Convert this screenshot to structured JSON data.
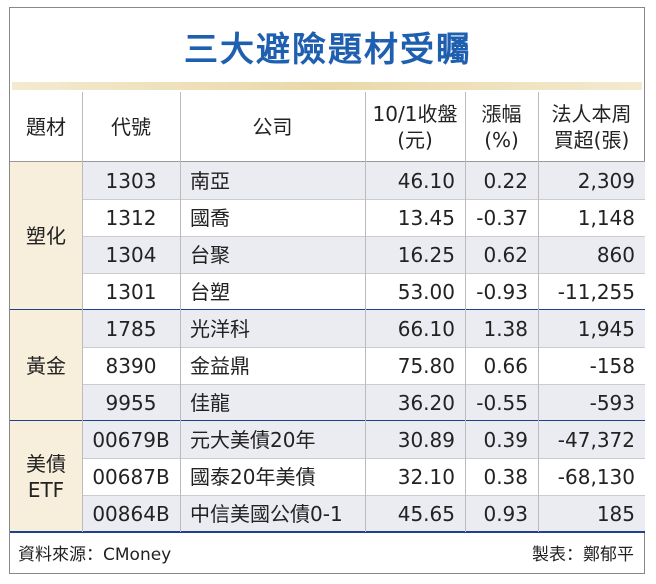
{
  "title": "三大避險題材受矚",
  "table": {
    "header": [
      [
        "題材"
      ],
      [
        "代號"
      ],
      [
        "公司"
      ],
      [
        "10/1收盤",
        "(元)"
      ],
      [
        "漲幅",
        "(%)"
      ],
      [
        "法人本周",
        "買超(張)"
      ]
    ],
    "groups": [
      {
        "label": [
          "塑化"
        ],
        "rows": [
          [
            "1303",
            "南亞",
            "46.10",
            "0.22",
            "2,309"
          ],
          [
            "1312",
            "國喬",
            "13.45",
            "-0.37",
            "1,148"
          ],
          [
            "1304",
            "台聚",
            "16.25",
            "0.62",
            "860"
          ],
          [
            "1301",
            "台塑",
            "53.00",
            "-0.93",
            "-11,255"
          ]
        ]
      },
      {
        "label": [
          "黃金"
        ],
        "rows": [
          [
            "1785",
            "光洋科",
            "66.10",
            "1.38",
            "1,945"
          ],
          [
            "8390",
            "金益鼎",
            "75.80",
            "0.66",
            "-158"
          ],
          [
            "9955",
            "佳龍",
            "36.20",
            "-0.55",
            "-593"
          ]
        ]
      },
      {
        "label": [
          "美債",
          "ETF"
        ],
        "rows": [
          [
            "00679B",
            "元大美債20年",
            "30.89",
            "0.39",
            "-47,372"
          ],
          [
            "00687B",
            "國泰20年美債",
            "32.10",
            "0.38",
            "-68,130"
          ],
          [
            "00864B",
            "中信美國公債0-1",
            "45.65",
            "0.93",
            "185"
          ]
        ]
      }
    ]
  },
  "footer": {
    "source": "資料來源：CMoney",
    "author": "製表：鄭郁平"
  }
}
